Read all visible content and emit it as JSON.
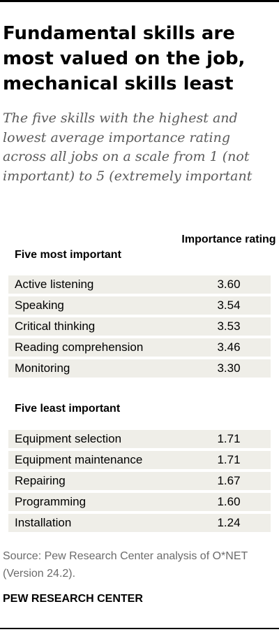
{
  "title": "Fundamental skills are most valued on the job, mechanical skills least",
  "subtitle": "The five skills with the highest and lowest average importance rating across all jobs on a scale from 1 (not important) to 5 (extremely important",
  "column_header": "Importance rating",
  "chart_data": {
    "type": "table",
    "value_column": "Importance rating",
    "groups": [
      {
        "name": "Five most important",
        "rows": [
          {
            "skill": "Active listening",
            "rating": "3.60"
          },
          {
            "skill": "Speaking",
            "rating": "3.54"
          },
          {
            "skill": "Critical thinking",
            "rating": "3.53"
          },
          {
            "skill": "Reading comprehension",
            "rating": "3.46"
          },
          {
            "skill": "Monitoring",
            "rating": "3.30"
          }
        ]
      },
      {
        "name": "Five least important",
        "rows": [
          {
            "skill": "Equipment selection",
            "rating": "1.71"
          },
          {
            "skill": "Equipment maintenance",
            "rating": "1.71"
          },
          {
            "skill": "Repairing",
            "rating": "1.67"
          },
          {
            "skill": "Programming",
            "rating": "1.60"
          },
          {
            "skill": "Installation",
            "rating": "1.24"
          }
        ]
      }
    ]
  },
  "source": "Source: Pew Research Center analysis of O*NET (Version 24.2).",
  "brand": "PEW RESEARCH CENTER",
  "colors": {
    "row_background": "#efeee8",
    "subtitle_text": "#5a5a5a",
    "source_text": "#6b6b6b"
  }
}
